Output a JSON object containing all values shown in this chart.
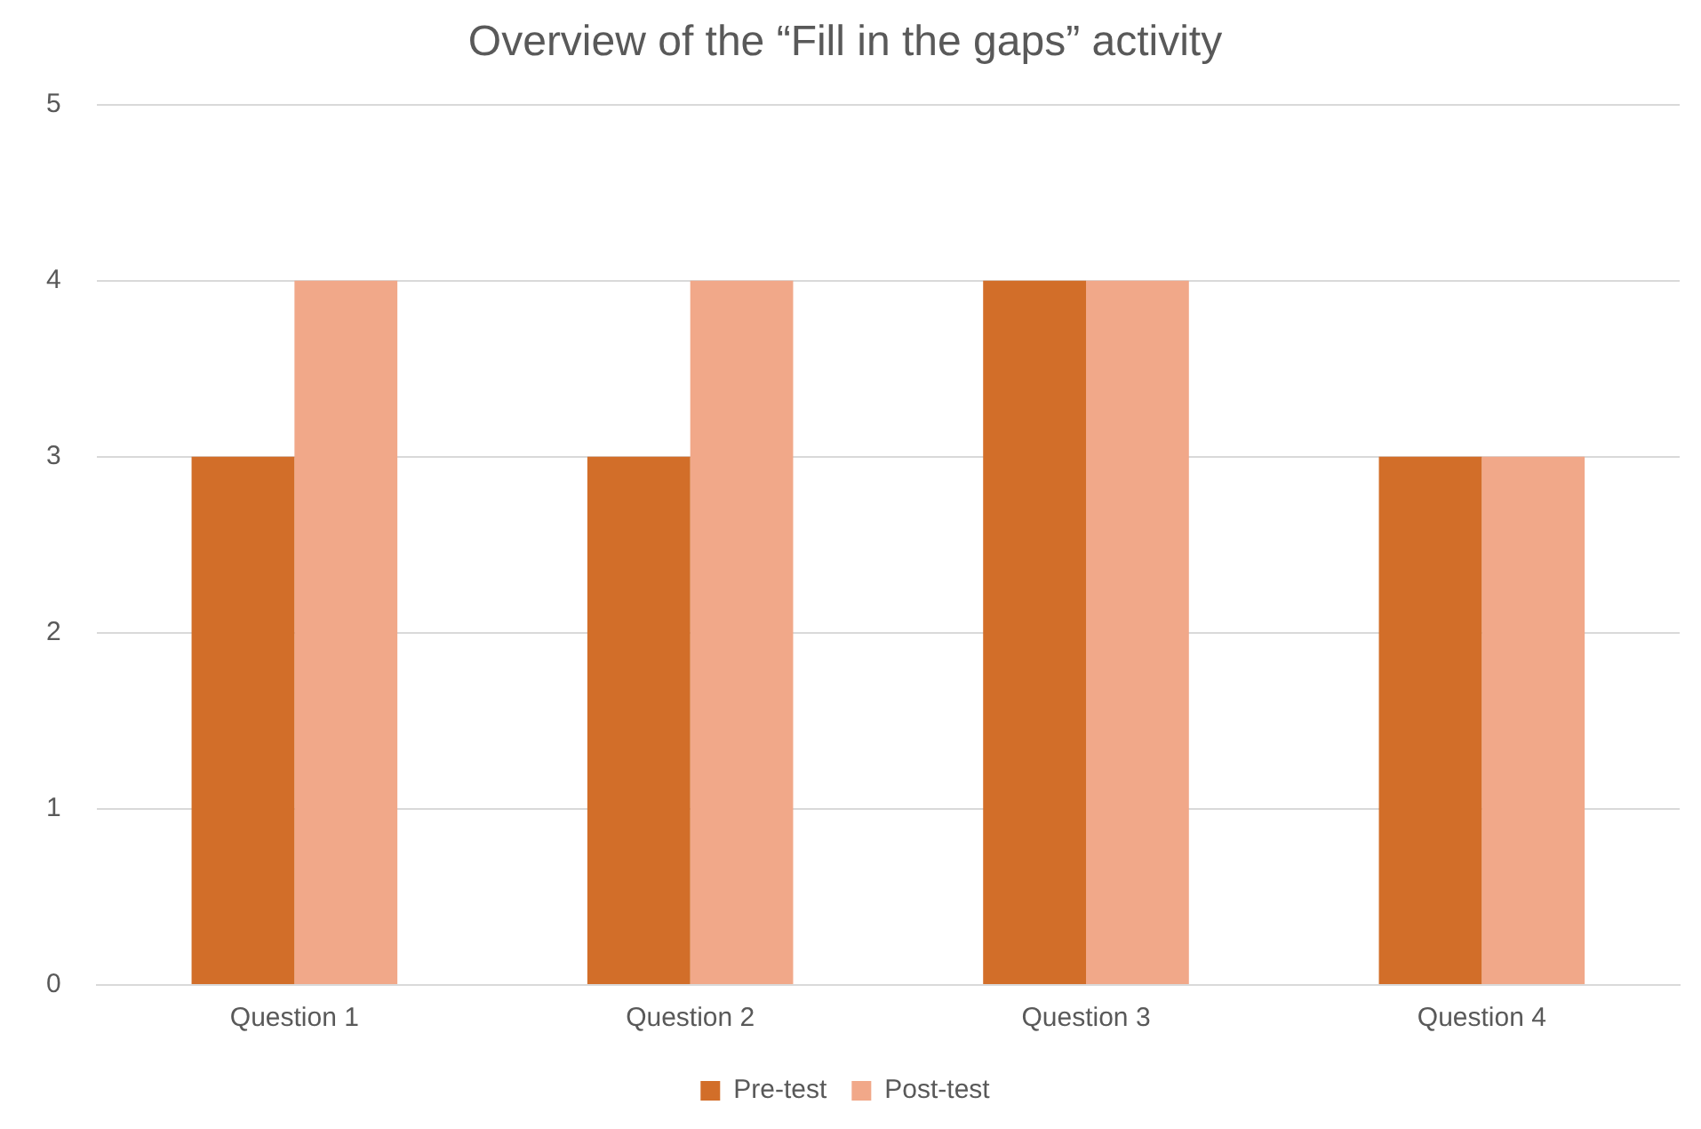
{
  "chart_data": {
    "type": "bar",
    "title": "Overview of the “Fill in the gaps” activity",
    "categories": [
      "Question 1",
      "Question 2",
      "Question 3",
      "Question 4"
    ],
    "series": [
      {
        "name": "Pre-test",
        "color": "#d26e29",
        "values": [
          3,
          3,
          4,
          3
        ]
      },
      {
        "name": "Post-test",
        "color": "#f1a889",
        "values": [
          4,
          4,
          4,
          3
        ]
      }
    ],
    "ylim": [
      0,
      5
    ],
    "yticks": [
      0,
      1,
      2,
      3,
      4,
      5
    ],
    "grid": "y",
    "legend": "bottom"
  }
}
